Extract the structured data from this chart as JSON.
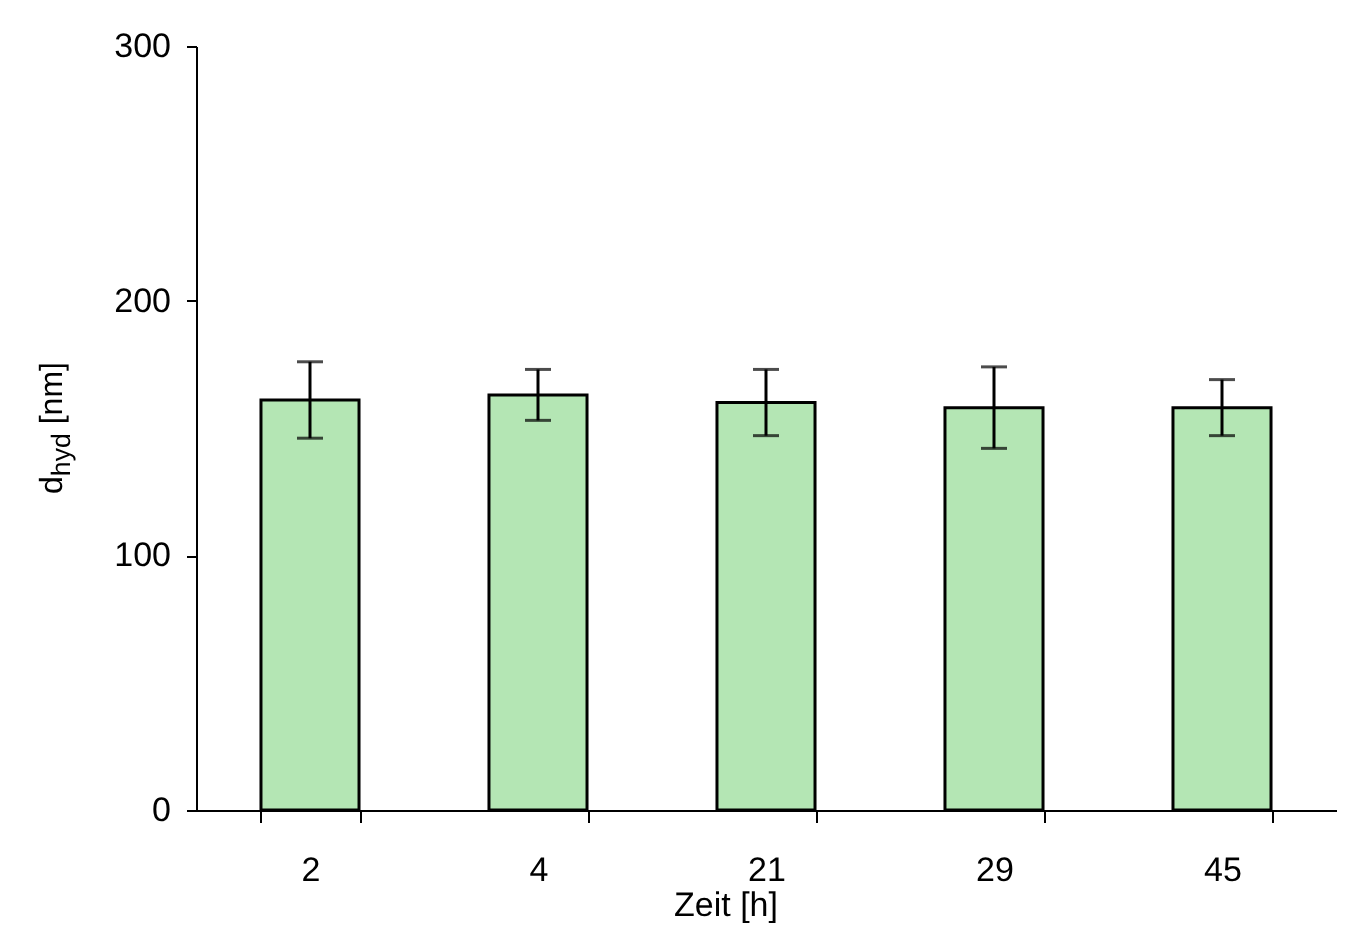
{
  "chart_data": {
    "type": "bar",
    "xlabel": "Zeit [h]",
    "ylabel": "d$_{hyd}$ [nm]",
    "categories": [
      "2",
      "4",
      "21",
      "29",
      "45"
    ],
    "values": [
      161,
      163,
      160,
      158,
      158
    ],
    "errors": [
      15,
      10,
      13,
      16,
      11
    ],
    "color": "#b4e6b4",
    "ylim": [
      0,
      300
    ],
    "yticks": [
      0,
      100,
      200,
      300
    ],
    "grid": false
  }
}
